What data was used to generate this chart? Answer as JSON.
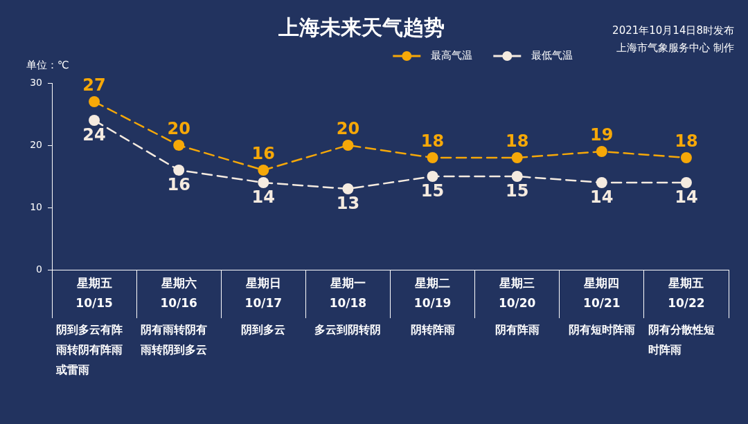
{
  "chart_data": {
    "type": "line",
    "title": "上海未来天气趋势",
    "ylabel": "单位：℃",
    "categories": [
      "星期五\n10/15",
      "星期六\n10/16",
      "星期日\n10/17",
      "星期一\n10/18",
      "星期二\n10/19",
      "星期三\n10/20",
      "星期四\n10/21",
      "星期五\n10/22"
    ],
    "series": [
      {
        "name": "最高气温",
        "color": "#f6a808",
        "values": [
          27,
          20,
          16,
          20,
          18,
          18,
          19,
          18
        ]
      },
      {
        "name": "最低气温",
        "color": "#f5ebe0",
        "values": [
          24,
          16,
          14,
          13,
          15,
          15,
          14,
          14
        ]
      }
    ],
    "ylim": [
      0,
      30
    ],
    "yticks": [
      0,
      10,
      20,
      30
    ],
    "legend": "top right",
    "marker": "circle",
    "line_style": "dashed",
    "data_labels": true,
    "annotations": [
      "2021年10月14日8时发布",
      "上海市气象服务中心 制作",
      "阴到多云有阵雨转阴有阵雨或雷雨",
      "阴有雨转阴有雨转阴到多云",
      "阴到多云",
      "多云到阴转阴",
      "阴转阵雨",
      "阴有阵雨",
      "阴有短时阵雨",
      "阴有分散性短时阵雨"
    ]
  }
}
